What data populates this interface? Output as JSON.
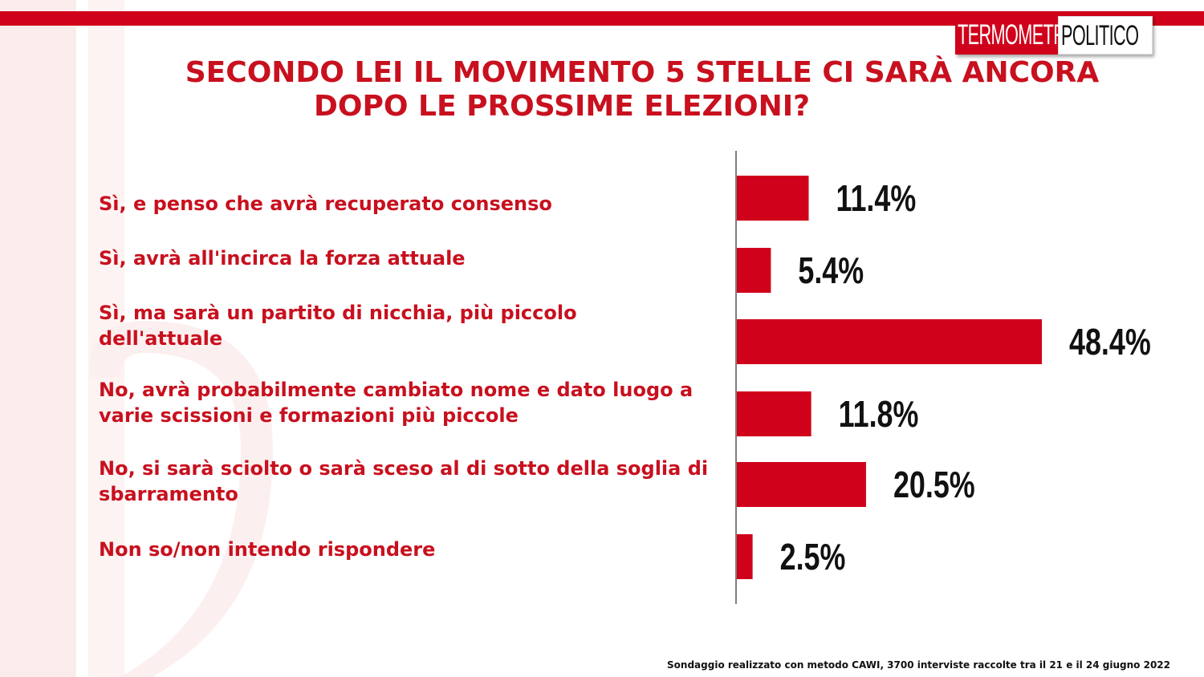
{
  "brand": {
    "logo_left": "TERMOMETRO",
    "logo_right": "POLITICO",
    "accent_color": "#d0021b",
    "text_color": "#c8101e",
    "bar_color": "#d0021b"
  },
  "chart_data": {
    "type": "bar",
    "orientation": "horizontal",
    "title_lines": [
      "SECONDO LEI IL MOVIMENTO 5 STELLE CI SARÀ ANCORA",
      "DOPO LE PROSSIME ELEZIONI?"
    ],
    "categories": [
      "Sì, e penso che avrà  recuperato consenso",
      "Sì, avrà  all'incirca la forza attuale",
      "Sì, ma sarà  un partito di nicchia, più piccolo dell'attuale",
      "No, avrà  probabilmente cambiato nome e dato luogo a varie scissioni e formazioni più piccole",
      "No, si sarà  sciolto o sarà  sceso al di sotto della soglia di sbarramento",
      "Non so/non intendo rispondere"
    ],
    "values": [
      11.4,
      5.4,
      48.4,
      11.8,
      20.5,
      2.5
    ],
    "value_labels": [
      "11.4%",
      "5.4%",
      "48.4%",
      "11.8%",
      "20.5%",
      "2.5%"
    ],
    "xlim": [
      0,
      50
    ],
    "grid": false,
    "legend": "none"
  },
  "footnote": "Sondaggio realizzato con metodo CAWI, 3700 interviste raccolte tra il 21 e il 24 giugno 2022"
}
